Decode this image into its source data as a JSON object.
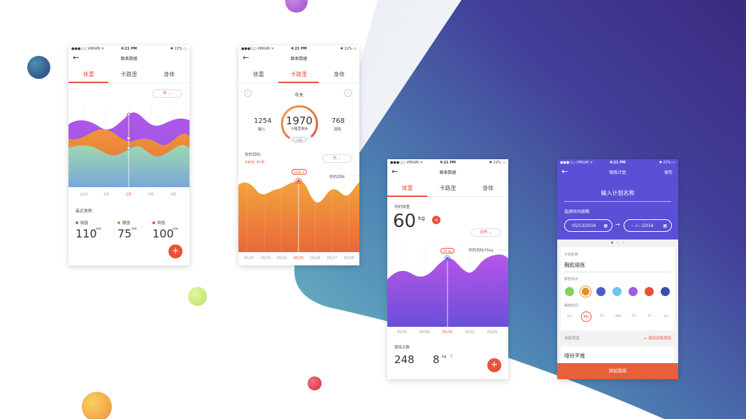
{
  "background": {
    "gradient_colors": [
      "#6fb7c6",
      "#4b79b0",
      "#3f3f99",
      "#3a2d7e"
    ],
    "bubbles": [
      "#2e4f8a",
      "#a86bd8",
      "#c7ec7c",
      "#e0405a",
      "#f0a840"
    ]
  },
  "status": {
    "carrier": "●●●○○ VIRGIN ᯤ",
    "time": "4:21 PM",
    "battery": "✱ 22% ▭"
  },
  "screen1": {
    "title": "图表数据",
    "tabs": [
      "体重",
      "卡路里",
      "身体"
    ],
    "period": "年",
    "x_labels": [
      "12月",
      "1月",
      "2月",
      "3月",
      "4月"
    ],
    "recent_label": "最近更新:",
    "stats": [
      {
        "label": "胸围",
        "value": "110",
        "unit": "cm",
        "color": "#9b59d0"
      },
      {
        "label": "腰围",
        "value": "75",
        "unit": "cm",
        "color": "#e8823a"
      },
      {
        "label": "臀围",
        "value": "100",
        "unit": "cm",
        "color": "#e8503a"
      }
    ],
    "fab": "+"
  },
  "screen2": {
    "title": "图表数据",
    "tabs": [
      "体重",
      "卡路里",
      "身体"
    ],
    "day_label": "今天",
    "intake_value": "1254",
    "intake_label": "摄入",
    "remaining_value": "1970",
    "remaining_label": "卡路里剩余",
    "detail_label": "详情",
    "burned_value": "768",
    "burned_label": "消耗",
    "goal_label": "你的目标:",
    "goal_value": "2456 卡/天",
    "period": "天",
    "marker_label": "2456 卡",
    "goal_line_label": "你的目标",
    "x_labels": [
      "05/22",
      "05/23",
      "05/24",
      "05/25",
      "05/26",
      "05/27",
      "05/28"
    ]
  },
  "screen3": {
    "title": "图表数据",
    "tabs": [
      "体重",
      "卡路里",
      "身体"
    ],
    "weight_label": "你的体重",
    "weight_value": "60",
    "weight_unit": "kg",
    "period": "月份",
    "marker_label": "60 kg",
    "goal_line_label": "你的目标75kg",
    "x_labels": [
      "05/01",
      "05/08",
      "05/15",
      "05/22",
      "05/29"
    ],
    "days_label": "锻炼天数",
    "days_value": "248",
    "change_value": "8",
    "change_unit": "kg",
    "change_arrow": "↑",
    "fab": "+"
  },
  "screen4": {
    "title": "锻炼计划",
    "save": "保存",
    "plan_name_placeholder": "输入计划名称",
    "period_label": "选择时间周期",
    "start_date": "05/13/2016",
    "end_date": "-- /-- /2016",
    "plan_name_label": "计划名称",
    "plan_name_value": "胸肌锻炼",
    "color_label": "颜色标示",
    "colors": [
      "#7fd35a",
      "#e8902a",
      "#4e5cc8",
      "#6ec3ee",
      "#a35ce0",
      "#e8503a",
      "#3c4fa8"
    ],
    "time_label": "锻炼时间",
    "days": [
      "Su",
      "Mo",
      "Tu",
      "We",
      "Th",
      "Fr",
      "Sa"
    ],
    "items_label": "训练项目",
    "add_item": "+ 添加训练项目",
    "item": "哑铃平推",
    "add_button": "添加锻炼"
  }
}
